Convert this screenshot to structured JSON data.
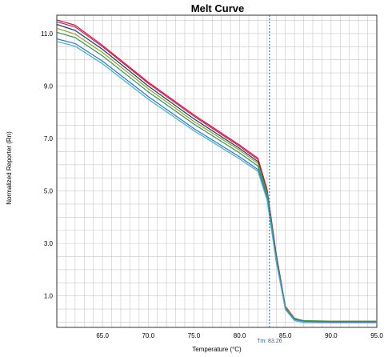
{
  "chart_data": {
    "type": "line",
    "title": "Melt Curve",
    "xlabel": "Temperature (°C)",
    "ylabel": "Normalized Reporter (Rn)",
    "xlim": [
      60.0,
      95.0
    ],
    "ylim": [
      -0.2,
      11.7
    ],
    "x_ticks": [
      "65.0",
      "70.0",
      "75.0",
      "80.0",
      "85.0",
      "90.0",
      "95.0"
    ],
    "y_ticks": [
      "1.0",
      "3.0",
      "5.0",
      "7.0",
      "9.0",
      "11.0"
    ],
    "grid": true,
    "tm_marker": {
      "value": 83.26,
      "label": "Tm: 83.26"
    },
    "series": [
      {
        "color": "#c0186c",
        "points": [
          [
            60,
            11.52
          ],
          [
            62,
            11.32
          ],
          [
            65,
            10.55
          ],
          [
            70,
            9.15
          ],
          [
            75,
            7.9
          ],
          [
            80,
            6.75
          ],
          [
            82,
            6.25
          ],
          [
            83,
            5.05
          ],
          [
            84,
            2.6
          ],
          [
            85,
            0.6
          ],
          [
            86,
            0.15
          ],
          [
            87,
            0.05
          ],
          [
            90,
            0.03
          ],
          [
            95,
            0.03
          ]
        ]
      },
      {
        "color": "#e02020",
        "points": [
          [
            60,
            11.45
          ],
          [
            62,
            11.25
          ],
          [
            65,
            10.5
          ],
          [
            70,
            9.1
          ],
          [
            75,
            7.85
          ],
          [
            80,
            6.7
          ],
          [
            82,
            6.2
          ],
          [
            83,
            5.0
          ],
          [
            84,
            2.55
          ],
          [
            85,
            0.58
          ],
          [
            86,
            0.14
          ],
          [
            87,
            0.05
          ],
          [
            90,
            0.03
          ],
          [
            95,
            0.04
          ]
        ]
      },
      {
        "color": "#1f3b8c",
        "points": [
          [
            60,
            11.35
          ],
          [
            62,
            11.12
          ],
          [
            65,
            10.4
          ],
          [
            70,
            9.0
          ],
          [
            75,
            7.75
          ],
          [
            80,
            6.62
          ],
          [
            82,
            6.12
          ],
          [
            83,
            4.95
          ],
          [
            84,
            2.5
          ],
          [
            85,
            0.55
          ],
          [
            86,
            0.12
          ],
          [
            87,
            0.04
          ],
          [
            90,
            0.02
          ],
          [
            95,
            0.02
          ]
        ]
      },
      {
        "color": "#9aa020",
        "points": [
          [
            60,
            11.2
          ],
          [
            62,
            10.98
          ],
          [
            65,
            10.28
          ],
          [
            70,
            8.9
          ],
          [
            75,
            7.65
          ],
          [
            80,
            6.55
          ],
          [
            82,
            6.05
          ],
          [
            83,
            4.9
          ],
          [
            84,
            2.45
          ],
          [
            85,
            0.55
          ],
          [
            86,
            0.14
          ],
          [
            87,
            0.06
          ],
          [
            90,
            0.04
          ],
          [
            95,
            0.04
          ]
        ]
      },
      {
        "color": "#2d9a4a",
        "points": [
          [
            60,
            11.05
          ],
          [
            62,
            10.85
          ],
          [
            65,
            10.15
          ],
          [
            70,
            8.78
          ],
          [
            75,
            7.55
          ],
          [
            80,
            6.45
          ],
          [
            82,
            5.95
          ],
          [
            83,
            4.82
          ],
          [
            84,
            2.4
          ],
          [
            85,
            0.52
          ],
          [
            86,
            0.12
          ],
          [
            87,
            0.05
          ],
          [
            90,
            0.03
          ],
          [
            95,
            0.03
          ]
        ]
      },
      {
        "color": "#3a70c8",
        "points": [
          [
            60,
            10.8
          ],
          [
            62,
            10.62
          ],
          [
            65,
            9.95
          ],
          [
            70,
            8.6
          ],
          [
            75,
            7.38
          ],
          [
            80,
            6.3
          ],
          [
            82,
            5.82
          ],
          [
            83,
            4.72
          ],
          [
            84,
            2.35
          ],
          [
            85,
            0.5
          ],
          [
            86,
            0.1
          ],
          [
            87,
            0.03
          ],
          [
            90,
            0.01
          ],
          [
            95,
            0.01
          ]
        ]
      },
      {
        "color": "#30b8d8",
        "points": [
          [
            60,
            10.7
          ],
          [
            62,
            10.52
          ],
          [
            65,
            9.85
          ],
          [
            70,
            8.5
          ],
          [
            75,
            7.3
          ],
          [
            80,
            6.22
          ],
          [
            82,
            5.75
          ],
          [
            83,
            4.65
          ],
          [
            84,
            2.3
          ],
          [
            85,
            0.48
          ],
          [
            86,
            0.06
          ],
          [
            87,
            -0.02
          ],
          [
            90,
            -0.03
          ],
          [
            95,
            -0.03
          ]
        ]
      }
    ]
  }
}
